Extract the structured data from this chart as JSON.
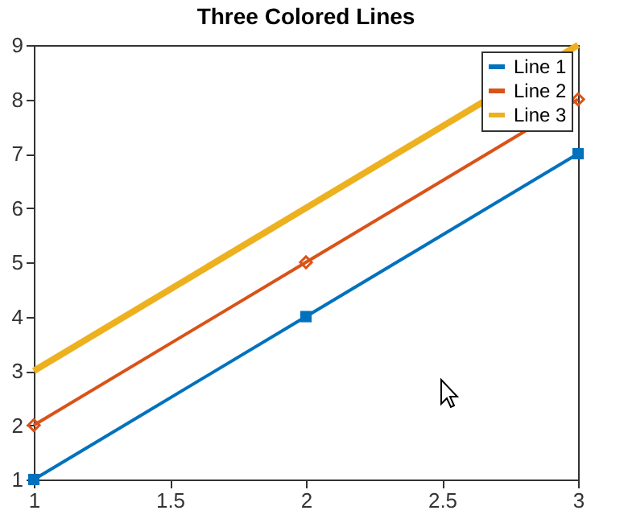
{
  "chart_data": {
    "type": "line",
    "title": "Three Colored Lines",
    "xlim": [
      1,
      3
    ],
    "xticks": [
      1,
      1.5,
      2,
      2.5,
      3
    ],
    "ylim": [
      1,
      9
    ],
    "yticks": [
      1,
      2,
      3,
      4,
      5,
      6,
      7,
      8,
      9
    ],
    "grid": false,
    "legend": "top right",
    "x": [
      1,
      2,
      3
    ],
    "series": [
      {
        "name": "Line 1",
        "color": "#0072bd",
        "values": [
          1,
          4,
          7
        ],
        "marker": "square"
      },
      {
        "name": "Line 2",
        "color": "#d95319",
        "values": [
          2,
          5,
          8
        ],
        "marker": "diamond"
      },
      {
        "name": "Line 3",
        "color": "#edb120",
        "x": [
          1,
          3
        ],
        "values": [
          3,
          9
        ],
        "marker": "none"
      }
    ]
  }
}
